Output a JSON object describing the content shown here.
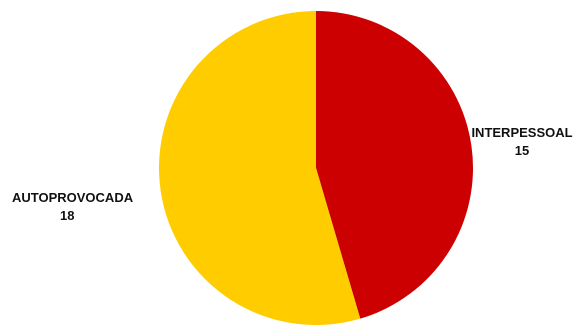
{
  "chart_data": {
    "type": "pie",
    "slices": [
      {
        "label": "INTERPESSOAL",
        "value": 15,
        "value_text": "15",
        "color": "#CC0000"
      },
      {
        "label": "AUTOPROVOCADA",
        "value": 18,
        "value_text": "18",
        "color": "#FFCC00"
      }
    ],
    "title": "",
    "legend": "none"
  }
}
